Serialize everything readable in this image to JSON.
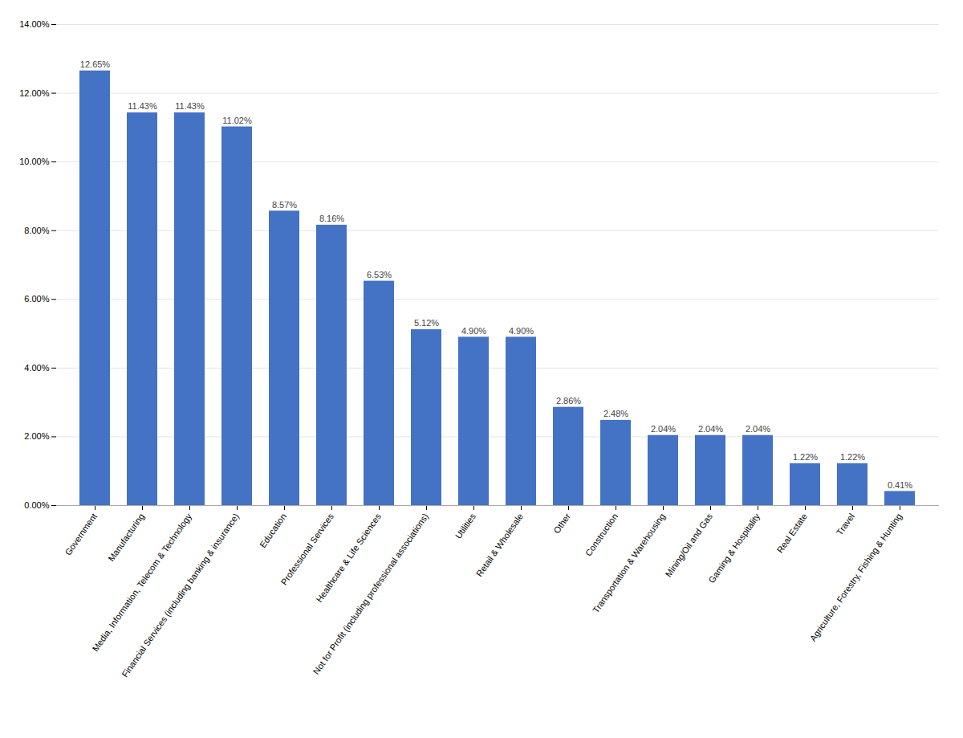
{
  "chart_data": {
    "type": "bar",
    "categories": [
      "Government",
      "Manufacturing",
      "Media, Information, Telecom & Technology",
      "Financial Services (including banking & insurance)",
      "Education",
      "Professional Services",
      "Healthcare & Life Sciences",
      "Not for Profit (including professional associations)",
      "Utilities",
      "Retail & Wholesale",
      "Other",
      "Construction",
      "Transportation & Warehousing",
      "Mining/Oil and Gas",
      "Gaming & Hospitality",
      "Real Estate",
      "Travel",
      "Agriculture, Forestry, Fishing & Hunting"
    ],
    "values": [
      0.1265,
      0.1143,
      0.1143,
      0.1102,
      0.0857,
      0.0816,
      0.0653,
      0.0512,
      0.049,
      0.049,
      0.0286,
      0.0248,
      0.0204,
      0.0204,
      0.0204,
      0.0122,
      0.0122,
      0.0041
    ],
    "value_labels": [
      "12.65%",
      "11.43%",
      "11.43%",
      "11.02%",
      "8.57%",
      "8.16%",
      "6.53%",
      "5.12%",
      "4.90%",
      "4.90%",
      "2.86%",
      "2.48%",
      "2.04%",
      "2.04%",
      "2.04%",
      "1.22%",
      "1.22%",
      "0.41%"
    ],
    "data_labels": true,
    "color": "#4472C4",
    "ylim": [
      0,
      0.14
    ],
    "yticks": [
      {
        "value": 0.0,
        "label": "0.00%"
      },
      {
        "value": 0.02,
        "label": "2.00%"
      },
      {
        "value": 0.04,
        "label": "4.00%"
      },
      {
        "value": 0.06,
        "label": "6.00%"
      },
      {
        "value": 0.08,
        "label": "8.00%"
      },
      {
        "value": 0.1,
        "label": "10.00%"
      },
      {
        "value": 0.12,
        "label": "12.00%"
      },
      {
        "value": 0.14,
        "label": "14.00%"
      }
    ],
    "grid": true
  }
}
